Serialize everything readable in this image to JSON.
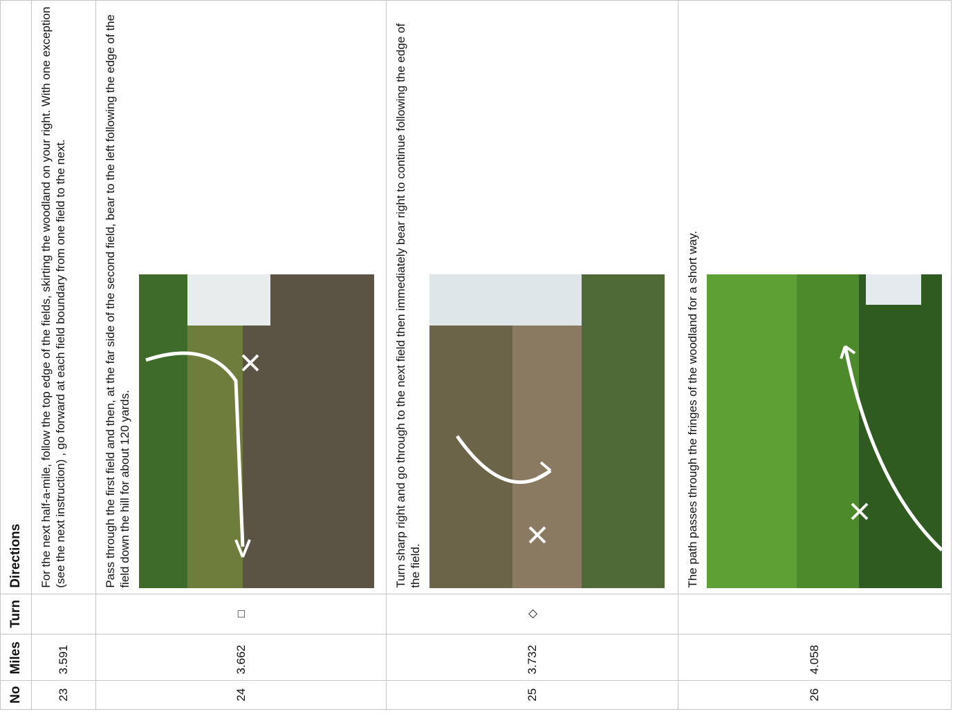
{
  "table": {
    "header": {
      "no": "No",
      "miles": "Miles",
      "turn": "Turn",
      "directions": "Directions"
    },
    "rows": [
      {
        "no": "23",
        "miles": "3.591",
        "directions": "For the next half-a-mile, follow the top edge of the fields, skirting the woodland on your right. With one exception (see the next instruction) , go forward at each field boundary from one field to the next."
      },
      {
        "no": "24",
        "miles": "3.662",
        "turn": "□",
        "directions": "Pass through the first field and then, at the far side of the second field, bear to the left following the edge of the field down the hill for about 120 yards."
      },
      {
        "no": "25",
        "miles": "3.732",
        "turn": "◇",
        "directions": "Turn sharp right and go through to the next field then immediately bear right to continue following the edge of the field."
      },
      {
        "no": "26",
        "miles": "4.058",
        "directions": "The path passes through the fringes of the woodland for a short way."
      }
    ]
  }
}
